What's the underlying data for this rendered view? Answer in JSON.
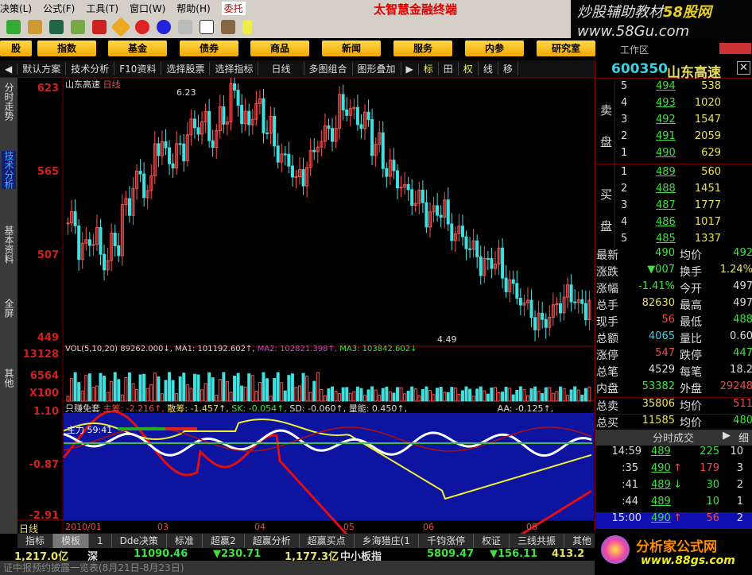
{
  "menu": {
    "items": [
      "决策(L)",
      "公式(F)",
      "工具(T)",
      "窗口(W)",
      "帮助(H)"
    ],
    "entrust": "委托",
    "title": "太智慧金融终端"
  },
  "watermark": {
    "line1": "炒股辅助教材",
    "brand": "58股网",
    "line2": "www.58Gu.com"
  },
  "categories": [
    "股",
    "指数",
    "基金",
    "债券",
    "商品",
    "新闻",
    "服务",
    "内参",
    "研究室"
  ],
  "workspace": "工作区",
  "tabs": [
    "默认方案",
    "技术分析",
    "F10资料",
    "选择股票",
    "选择指标",
    "日线",
    "多图组合",
    "图形叠加",
    "标",
    "田",
    "权",
    "线",
    "移"
  ],
  "sidebar": [
    "分时走势",
    "技术分析",
    "基本资料",
    "全屏",
    "其他"
  ],
  "chart": {
    "stock_name": "山东高速",
    "period": "日线",
    "price_axis": [
      "623",
      "565",
      "507",
      "449"
    ],
    "high_label": "6.23",
    "low_label": "4.49",
    "closes": [
      530,
      512,
      520,
      505,
      515,
      540,
      560,
      555,
      585,
      575,
      580,
      595,
      600,
      590,
      605,
      620,
      600,
      610,
      598,
      580,
      570,
      560,
      575,
      590,
      595,
      612,
      605,
      600,
      585,
      570,
      560,
      550,
      545,
      535,
      540,
      525,
      520,
      510,
      500,
      505,
      490,
      480,
      470,
      460,
      465,
      475,
      480,
      470,
      478,
      485,
      480,
      490,
      495,
      500,
      498,
      505,
      495,
      490,
      485,
      495,
      500,
      505,
      490
    ]
  },
  "volume": {
    "axis": [
      "13128",
      "6564",
      "X100"
    ],
    "label": "VOL(5,10,20)",
    "vol": "89262.000↓,",
    "ma1": "MA1: 101192.602↑,",
    "ma2": "MA2: 102821.398↑,",
    "ma3": "MA3: 103842.602↓"
  },
  "indicator": {
    "name": "只赚免套",
    "main": "主筹: -2.216↑,",
    "retail": "散筹: -1.457↑,",
    "sk": "SK: -0.054↑,",
    "sd": "SD: -0.060↑,",
    "energy": "量能: 0.450↑,",
    "aa": "AA: -0.125↑,",
    "axis": [
      "1.10",
      "-0.87",
      "-2.91"
    ],
    "force_label": "主力 59:41"
  },
  "date_axis": {
    "period": "日线",
    "labels": [
      "2010/01",
      "03",
      "04",
      "05",
      "06",
      "08"
    ]
  },
  "bottom_tabs": [
    "指标",
    "模板",
    "1",
    "Dde决策",
    "标准",
    "超赢2",
    "超赢分析",
    "超赢买点",
    "乡海猎庄(1",
    "千钧涨停",
    "权证",
    "三线共振",
    "其他"
  ],
  "ticker": [
    "1,217.0亿",
    "深",
    "11090.46",
    "▼230.71",
    "1,177.3亿",
    "中小板指",
    "5809.47",
    "▼156.11",
    "413.2亿"
  ],
  "status": "证中报预约披露一览表(8月21日-8月23日)",
  "quote": {
    "code": "600350",
    "name": "山东高速",
    "sell_label": [
      "卖",
      "盘"
    ],
    "buy_label": [
      "买",
      "盘"
    ],
    "sell": [
      [
        "5",
        "494",
        "538"
      ],
      [
        "4",
        "493",
        "1020"
      ],
      [
        "3",
        "492",
        "1547"
      ],
      [
        "2",
        "491",
        "2059"
      ],
      [
        "1",
        "490",
        "629"
      ]
    ],
    "buy": [
      [
        "1",
        "489",
        "560"
      ],
      [
        "2",
        "488",
        "1451"
      ],
      [
        "3",
        "487",
        "1777"
      ],
      [
        "4",
        "486",
        "1017"
      ],
      [
        "5",
        "485",
        "1337"
      ]
    ],
    "stats": [
      [
        "最新",
        "490",
        "均价",
        "492"
      ],
      [
        "涨跌",
        "▼007",
        "换手",
        "1.24%"
      ],
      [
        "涨幅",
        "-1.41%",
        "今开",
        "497"
      ],
      [
        "总手",
        "82630",
        "最高",
        "497"
      ],
      [
        "现手",
        "56",
        "最低",
        "488"
      ],
      [
        "总额",
        "4065",
        "量比",
        "0.60"
      ],
      [
        "涨停",
        "547",
        "跌停",
        "447"
      ],
      [
        "总笔",
        "4529",
        "每笔",
        "18.2"
      ],
      [
        "内盘",
        "53382",
        "外盘",
        "29248"
      ],
      [
        "总卖",
        "35806",
        "均价",
        "511"
      ],
      [
        "总买",
        "11585",
        "均价",
        "480"
      ]
    ],
    "ticks_title": "分时成交",
    "ticks_detail": "细",
    "ticks": [
      [
        "14:59",
        "489",
        "",
        "225",
        "10"
      ],
      [
        ":35",
        "490",
        "↑",
        "179",
        "3"
      ],
      [
        ":41",
        "489",
        "↓",
        "30",
        "2"
      ],
      [
        ":44",
        "489",
        "",
        "10",
        "1"
      ],
      [
        "15:00",
        "490",
        "↑",
        "56",
        "2"
      ]
    ]
  },
  "logo": {
    "text": "分析家公式网",
    "url": "www.88gs.com"
  }
}
